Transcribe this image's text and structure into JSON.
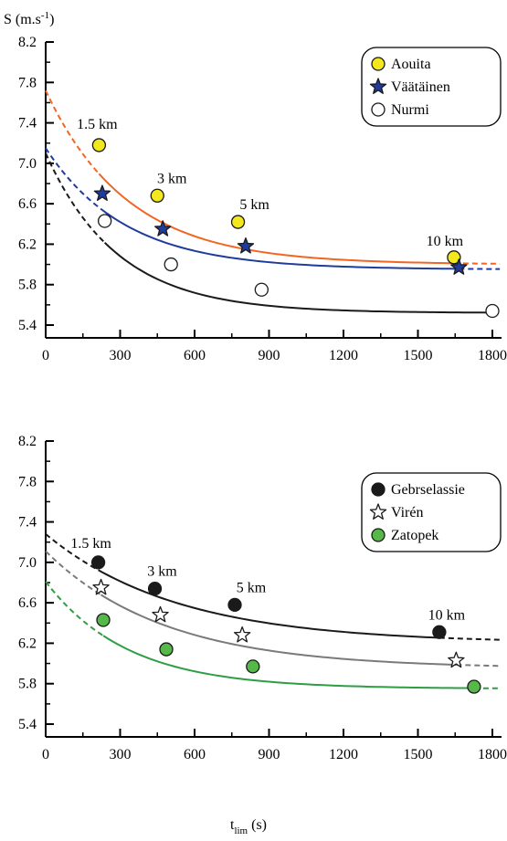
{
  "figure": {
    "ylabel": "S (m.s",
    "ylabel_sup": "-1",
    "ylabel_close": ")",
    "xlabel": "t",
    "xlabel_sub": "lim",
    "xlabel_unit": " (s)"
  },
  "chart_data": [
    {
      "type": "line",
      "xlim": [
        0,
        1800
      ],
      "ylim": [
        5.4,
        8.2
      ],
      "x_ticks": [
        0,
        300,
        600,
        900,
        1200,
        1500,
        1800
      ],
      "y_ticks": [
        5.4,
        5.8,
        6.2,
        6.6,
        7.0,
        7.4,
        7.8,
        8.2
      ],
      "y_tick_labels": [
        "5.4",
        "5.8",
        "6.2",
        "6.6",
        "7.0",
        "7.4",
        "7.8",
        "8.2"
      ],
      "legend_position": "top-right",
      "series": [
        {
          "name": "Aouita",
          "color": "#f26522",
          "marker": "circle",
          "marker_fill": "#f2e81c",
          "x": [
            215,
            450,
            775,
            1645
          ],
          "y": [
            7.18,
            6.68,
            6.42,
            6.07
          ],
          "curve": {
            "min": 6.0,
            "amp": 1.72,
            "tau": 330
          },
          "labels": [
            "1.5 km",
            "3 km",
            "5 km",
            "10 km"
          ]
        },
        {
          "name": "Väätäinen",
          "color": "#1f3b9c",
          "marker": "star",
          "marker_fill": "#1f3b9c",
          "x": [
            228,
            472,
            806,
            1665
          ],
          "y": [
            6.7,
            6.35,
            6.18,
            5.97
          ],
          "curve": {
            "min": 5.95,
            "amp": 1.2,
            "tau": 320
          }
        },
        {
          "name": "Nurmi",
          "color": "#1a1a1a",
          "marker": "circle",
          "marker_fill": "#ffffff",
          "x": [
            238,
            505,
            870,
            1800
          ],
          "y": [
            6.43,
            6.0,
            5.75,
            5.54
          ],
          "curve": {
            "min": 5.52,
            "amp": 1.58,
            "tau": 290
          }
        }
      ]
    },
    {
      "type": "line",
      "xlim": [
        0,
        1800
      ],
      "ylim": [
        5.4,
        8.2
      ],
      "x_ticks": [
        0,
        300,
        600,
        900,
        1200,
        1500,
        1800
      ],
      "y_ticks": [
        5.4,
        5.8,
        6.2,
        6.6,
        7.0,
        7.4,
        7.8,
        8.2
      ],
      "y_tick_labels": [
        "5.4",
        "5.8",
        "6.2",
        "6.6",
        "7.0",
        "7.4",
        "7.8",
        "8.2"
      ],
      "legend_position": "top-right",
      "series": [
        {
          "name": "Gebrselassie",
          "color": "#1a1a1a",
          "marker": "circle",
          "marker_fill": "#1a1a1a",
          "x": [
            212,
            440,
            762,
            1586
          ],
          "y": [
            7.0,
            6.74,
            6.58,
            6.31
          ],
          "curve": {
            "min": 6.2,
            "amp": 1.08,
            "tau": 530
          },
          "labels": [
            "1.5 km",
            "3 km",
            "5 km",
            "10 km"
          ]
        },
        {
          "name": "Virén",
          "color": "#7a7a7a",
          "marker": "star",
          "marker_fill": "#ffffff",
          "x": [
            223,
            462,
            792,
            1654
          ],
          "y": [
            6.75,
            6.48,
            6.28,
            6.03
          ],
          "curve": {
            "min": 5.95,
            "amp": 1.16,
            "tau": 480
          }
        },
        {
          "name": "Zatopek",
          "color": "#2e9e45",
          "marker": "circle",
          "marker_fill": "#55b848",
          "x": [
            232,
            486,
            835,
            1726
          ],
          "y": [
            6.43,
            6.14,
            5.97,
            5.77
          ],
          "curve": {
            "min": 5.75,
            "amp": 1.06,
            "tau": 330
          }
        }
      ]
    }
  ]
}
